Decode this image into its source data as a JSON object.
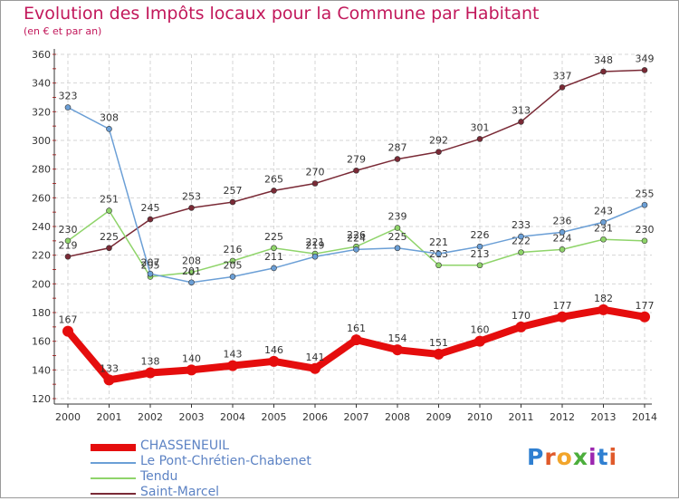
{
  "header": {
    "title": "Evolution des Impôts locaux pour la Commune par Habitant",
    "subtitle": "(en € et par an)"
  },
  "logo": {
    "text": "Proxiti",
    "colors": [
      "#2f7fd1",
      "#e05a2b",
      "#f2a52b",
      "#4cae3c",
      "#9c27b0",
      "#2f7fd1",
      "#e05a2b"
    ]
  },
  "chart_data": {
    "type": "line",
    "title": "Evolution des Impôts locaux pour la Commune par Habitant",
    "subtitle": "(en € et par an)",
    "xlabel": "",
    "ylabel": "",
    "ylim": [
      120,
      360
    ],
    "yticks": [
      120,
      140,
      160,
      180,
      200,
      220,
      240,
      260,
      280,
      300,
      320,
      340,
      360
    ],
    "grid": true,
    "x": [
      "2000",
      "2001",
      "2002",
      "2003",
      "2004",
      "2005",
      "2006",
      "2007",
      "2008",
      "2009",
      "2010",
      "2011",
      "2012",
      "2013",
      "2014"
    ],
    "series": [
      {
        "name": "CHASSENEUIL",
        "color": "#e50d0d",
        "values": [
          167,
          133,
          138,
          140,
          143,
          146,
          141,
          161,
          154,
          151,
          160,
          170,
          177,
          182,
          177
        ]
      },
      {
        "name": "Le Pont-Chrétien-Chabenet",
        "color": "#6b9fd6",
        "values": [
          323,
          308,
          207,
          201,
          205,
          211,
          219,
          224,
          225,
          221,
          226,
          233,
          236,
          243,
          255
        ]
      },
      {
        "name": "Tendu",
        "color": "#8fd46a",
        "values": [
          230,
          251,
          205,
          208,
          216,
          225,
          221,
          226,
          239,
          213,
          213,
          222,
          224,
          231,
          230
        ]
      },
      {
        "name": "Saint-Marcel",
        "color": "#7a2a36",
        "values": [
          219,
          225,
          245,
          253,
          257,
          265,
          270,
          279,
          287,
          292,
          301,
          313,
          337,
          348,
          349
        ]
      }
    ],
    "legend_position": "bottom-left"
  }
}
